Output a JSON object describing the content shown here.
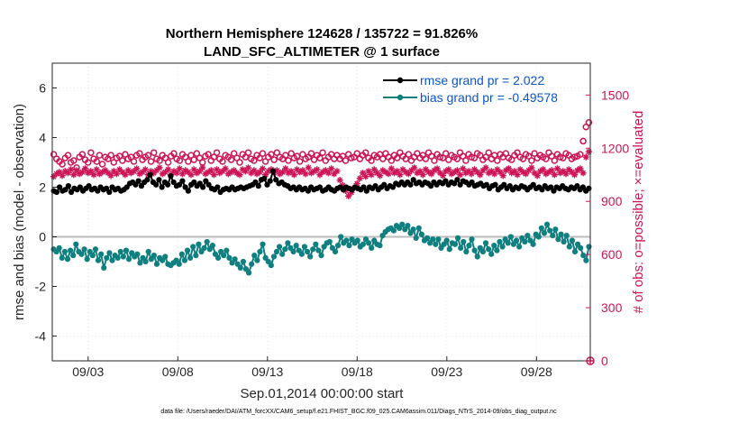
{
  "chart_data": {
    "type": "line",
    "title": "Northern Hemisphere 124628 / 135722 = 91.826%",
    "subtitle": "LAND_SFC_ALTIMETER @ 1 surface",
    "xlabel": "Sep.01,2014 00:00:00 start",
    "ylabel_left": "rmse and bias (model - observation)",
    "ylabel_right": "# of obs: o=possible; ×=evaluated",
    "footer": "data file: /Users/raeder/DAI/ATM_forcXX/CAM6_setup/f.e21.FHIST_BGC.f09_025.CAM6assim.011/Diags_NTrS_2014-09/obs_diag_output.nc",
    "x_range_days": [
      1.0,
      31.0
    ],
    "x_tick_values": [
      3,
      8,
      13,
      18,
      23,
      28
    ],
    "x_tick_labels": [
      "09/03",
      "09/08",
      "09/13",
      "09/18",
      "09/23",
      "09/28"
    ],
    "ylim_left": [
      -5,
      7
    ],
    "y_ticks_left": [
      -4,
      -2,
      0,
      2,
      4,
      6
    ],
    "ylim_right": [
      0,
      1680
    ],
    "y_ticks_right": [
      0,
      300,
      600,
      900,
      1200,
      1500
    ],
    "zero_line": 0,
    "series": [
      {
        "name": "rmse",
        "legend": "rmse grand pr = 2.022",
        "color": "#000000",
        "marker": "dot",
        "axis": "left",
        "values": [
          1.85,
          1.8,
          2.0,
          1.85,
          1.9,
          2.05,
          1.8,
          1.95,
          1.9,
          2.0,
          1.85,
          1.95,
          2.05,
          1.9,
          1.95,
          1.85,
          2.0,
          1.9,
          1.95,
          1.8,
          2.0,
          1.9,
          1.95,
          1.85,
          1.9,
          2.0,
          2.15,
          2.2,
          2.1,
          2.25,
          2.05,
          2.2,
          2.3,
          2.5,
          2.2,
          2.1,
          2.3,
          2.0,
          2.2,
          2.1,
          2.45,
          2.2,
          2.05,
          2.1,
          2.25,
          2.0,
          1.85,
          2.1,
          2.2,
          2.05,
          2.15,
          2.0,
          2.25,
          2.1,
          1.95,
          1.9,
          2.0,
          1.8,
          1.9,
          1.95,
          1.9,
          2.0,
          1.9,
          1.95,
          2.0,
          1.95,
          2.0,
          2.05,
          2.1,
          2.2,
          2.05,
          2.3,
          2.35,
          2.1,
          2.25,
          2.65,
          2.3,
          2.15,
          2.2,
          2.1,
          2.05,
          1.95,
          2.0,
          1.9,
          2.0,
          1.9,
          1.95,
          1.85,
          2.0,
          1.9,
          1.95,
          2.0,
          1.85,
          1.9,
          2.0,
          1.9,
          1.85,
          1.95,
          2.0,
          1.9,
          2.0,
          1.95,
          1.9,
          2.0,
          1.95,
          1.9,
          2.0,
          1.85,
          2.0,
          1.95,
          2.05,
          1.9,
          2.0,
          2.1,
          1.95,
          2.05,
          2.0,
          2.15,
          2.1,
          2.2,
          2.1,
          2.2,
          2.1,
          2.3,
          2.15,
          2.2,
          2.1,
          2.2,
          2.15,
          2.05,
          2.2,
          2.1,
          2.2,
          2.15,
          2.25,
          2.1,
          2.2,
          2.15,
          2.3,
          2.1,
          2.25,
          2.2,
          2.1,
          2.2,
          2.05,
          2.1,
          2.15,
          2.05,
          2.1,
          1.95,
          2.05,
          2.1,
          1.9,
          2.0,
          2.1,
          1.95,
          2.05,
          1.9,
          2.0,
          1.95,
          2.05,
          2.0,
          1.9,
          2.0,
          2.1,
          1.95,
          2.0,
          1.9,
          2.05,
          1.95,
          2.0,
          1.85,
          2.0,
          1.95,
          2.05,
          1.95,
          1.9,
          2.0,
          1.95,
          2.05,
          1.9,
          2.0,
          1.85,
          1.95
        ]
      },
      {
        "name": "bias",
        "legend": "bias grand pr = -0.49578",
        "color": "#0f7f7f",
        "marker": "dot",
        "axis": "left",
        "values": [
          -0.5,
          -0.6,
          -0.45,
          -0.85,
          -0.6,
          -0.9,
          -0.55,
          -0.75,
          -0.3,
          -0.6,
          -0.7,
          -0.5,
          -0.9,
          -0.6,
          -0.75,
          -0.5,
          -0.95,
          -0.7,
          -1.25,
          -0.85,
          -0.65,
          -0.95,
          -0.75,
          -0.85,
          -0.6,
          -0.8,
          -0.55,
          -0.9,
          -0.65,
          -0.8,
          -0.7,
          -1.05,
          -0.85,
          -1.0,
          -0.6,
          -0.9,
          -0.75,
          -1.1,
          -0.85,
          -0.95,
          -0.8,
          -1.1,
          -1.15,
          -1.05,
          -0.95,
          -1.1,
          -0.7,
          -0.95,
          -0.55,
          -0.85,
          -0.4,
          -0.75,
          -0.3,
          -0.6,
          -0.45,
          -0.2,
          -0.5,
          -0.35,
          -0.7,
          -0.85,
          -0.6,
          -0.75,
          -0.55,
          -0.85,
          -1.05,
          -0.9,
          -1.1,
          -1.25,
          -1.0,
          -1.3,
          -1.45,
          -1.1,
          -0.75,
          -0.95,
          -0.6,
          -0.3,
          -0.85,
          -1.0,
          -1.15,
          -0.8,
          -0.6,
          -0.4,
          -0.7,
          -0.5,
          -0.25,
          -0.45,
          -0.6,
          -0.35,
          -0.55,
          -0.7,
          -0.4,
          -0.6,
          -0.8,
          -0.5,
          -0.3,
          -0.55,
          -0.75,
          -0.4,
          -0.25,
          -0.2,
          -0.45,
          -0.6,
          -0.35,
          0.0,
          -0.25,
          -0.15,
          -0.35,
          -0.1,
          -0.25,
          -0.15,
          -0.4,
          -0.3,
          -0.1,
          -0.25,
          -0.45,
          -0.15,
          -0.3,
          -0.35,
          0.05,
          0.2,
          0.3,
          0.35,
          0.25,
          0.45,
          0.35,
          0.5,
          0.3,
          0.45,
          0.15,
          0.3,
          -0.05,
          0.35,
          0.1,
          -0.15,
          -0.05,
          -0.25,
          -0.1,
          -0.3,
          -0.1,
          -0.45,
          -0.3,
          -0.15,
          -0.5,
          -0.25,
          -0.3,
          -0.05,
          -0.45,
          -0.2,
          -0.6,
          -0.35,
          -0.1,
          -0.55,
          -0.8,
          -0.45,
          -0.6,
          -0.25,
          -0.5,
          -0.7,
          -0.35,
          -0.55,
          -0.2,
          -0.4,
          -0.1,
          -0.25,
          0.0,
          -0.3,
          -0.15,
          -0.4,
          -0.05,
          -0.2,
          0.05,
          -0.15,
          -0.3,
          0.1,
          0.0,
          0.35,
          0.15,
          0.5,
          0.25,
          0.05,
          0.3,
          -0.1,
          0.1,
          -0.2,
          0.05,
          -0.4,
          -0.15,
          -0.6,
          -0.3,
          -0.45,
          -0.75,
          -0.95,
          -0.4
        ]
      },
      {
        "name": "possible",
        "legend": "",
        "color": "#cc1456",
        "marker": "circle-open",
        "axis": "right",
        "values": [
          1165,
          1140,
          1125,
          1110,
          1145,
          1160,
          1120,
          1130,
          1090,
          1150,
          1165,
          1135,
          1120,
          1175,
          1140,
          1125,
          1160,
          1110,
          1150,
          1140,
          1160,
          1120,
          1145,
          1155,
          1130,
          1165,
          1140,
          1150,
          1125,
          1160,
          1170,
          1135,
          1150,
          1160,
          1125,
          1175,
          1140,
          1130,
          1160,
          1145,
          1120,
          1155,
          1170,
          1140,
          1130,
          1165,
          1150,
          1125,
          1160,
          1135,
          1170,
          1145,
          1120,
          1155,
          1165,
          1130,
          1150,
          1175,
          1140,
          1125,
          1160,
          1150,
          1135,
          1170,
          1145,
          1120,
          1165,
          1150,
          1175,
          1140,
          1130,
          1160,
          1145,
          1170,
          1125,
          1150,
          1165,
          1135,
          1175,
          1150,
          1140,
          1160,
          1130,
          1170,
          1145,
          1155,
          1125,
          1165,
          1140,
          1150,
          1170,
          1135,
          1160,
          1145,
          1175,
          1130,
          1150,
          1165,
          1140,
          1160,
          1140,
          1155,
          1130,
          1165,
          1145,
          1150,
          1170,
          1140,
          1160,
          1175,
          1145,
          1130,
          1160,
          1150,
          1165,
          1140,
          1170,
          1150,
          1130,
          1160,
          1145,
          1175,
          1155,
          1140,
          1165,
          1130,
          1150,
          1170,
          1145,
          1160,
          1140,
          1175,
          1155,
          1130,
          1165,
          1150,
          1145,
          1170,
          1135,
          1160,
          1150,
          1140,
          1175,
          1155,
          1130,
          1165,
          1150,
          1145,
          1170,
          1160,
          1135,
          1150,
          1175,
          1140,
          1160,
          1130,
          1165,
          1150,
          1170,
          1145,
          1135,
          1160,
          1175,
          1150,
          1140,
          1165,
          1155,
          1130,
          1170,
          1145,
          1160,
          1150,
          1140,
          1175,
          1155,
          1130,
          1165,
          1150,
          1145,
          1170,
          1160,
          1140,
          1150,
          1155,
          1165,
          1240,
          1320,
          1345
        ]
      },
      {
        "name": "evaluated",
        "legend": "",
        "color": "#cc1456",
        "marker": "asterisk",
        "axis": "right",
        "values": [
          1040,
          1055,
          1065,
          1045,
          1070,
          1060,
          1080,
          1050,
          1075,
          1055,
          1065,
          1085,
          1060,
          1070,
          1050,
          1080,
          1055,
          1065,
          1075,
          1060,
          1045,
          1070,
          1055,
          1080,
          1065,
          1050,
          1075,
          1060,
          1070,
          1085,
          1055,
          1065,
          1080,
          1050,
          1070,
          1060,
          1075,
          1090,
          1055,
          1065,
          1080,
          1050,
          1070,
          1060,
          1085,
          1055,
          1075,
          1065,
          1050,
          1080,
          1060,
          1070,
          1090,
          1055,
          1065,
          1075,
          1050,
          1080,
          1060,
          1070,
          1085,
          1055,
          1065,
          1075,
          1060,
          1050,
          1080,
          1070,
          1090,
          1060,
          1075,
          1055,
          1065,
          1085,
          1050,
          1070,
          1080,
          1060,
          1075,
          1055,
          1065,
          1085,
          1060,
          1070,
          1050,
          1080,
          1065,
          1075,
          1055,
          1090,
          1060,
          1070,
          1080,
          1050,
          1065,
          1075,
          1060,
          1085,
          1055,
          1070,
          1020,
          990,
          960,
          930,
          950,
          975,
          1000,
          1030,
          1060,
          1040,
          1070,
          1050,
          1080,
          1060,
          1045,
          1075,
          1065,
          1055,
          1085,
          1060,
          1070,
          1050,
          1080,
          1065,
          1055,
          1075,
          1090,
          1060,
          1070,
          1050,
          1080,
          1065,
          1055,
          1075,
          1085,
          1060,
          1045,
          1070,
          1080,
          1055,
          1065,
          1075,
          1050,
          1085,
          1060,
          1070,
          1055,
          1080,
          1065,
          1050,
          1075,
          1090,
          1060,
          1070,
          1055,
          1080,
          1065,
          1045,
          1075,
          1085,
          1060,
          1070,
          1050,
          1080,
          1065,
          1055,
          1075,
          1090,
          1060,
          1045,
          1070,
          1080,
          1055,
          1065,
          1075,
          1050,
          1085,
          1060,
          1070,
          1055,
          1080,
          1065,
          1050,
          1075,
          1085,
          1060,
          1150,
          1180
        ]
      }
    ],
    "extra_points": [
      {
        "series": "evaluated",
        "day": 31.0,
        "value": 0
      }
    ]
  }
}
